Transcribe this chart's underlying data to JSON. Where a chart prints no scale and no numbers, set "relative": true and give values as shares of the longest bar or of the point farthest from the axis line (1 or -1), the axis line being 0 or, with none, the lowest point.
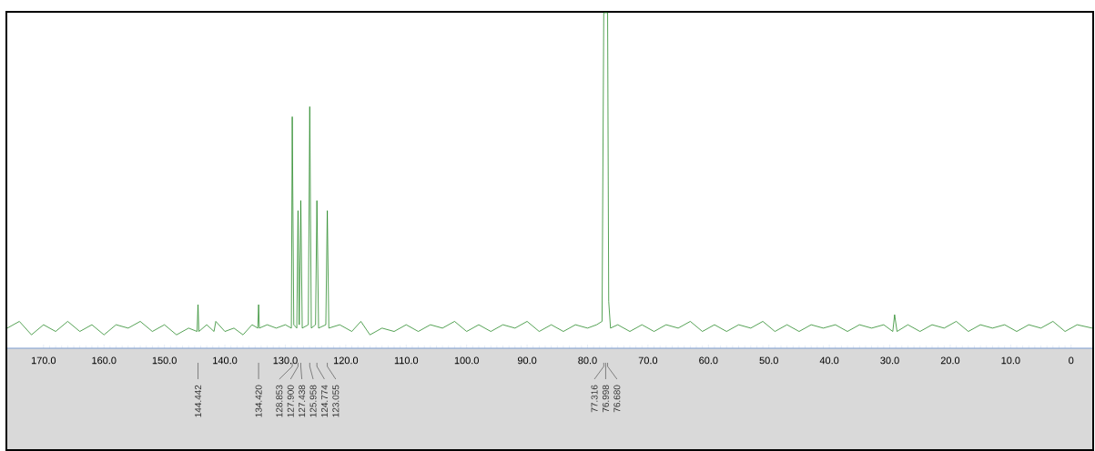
{
  "chart_data": {
    "type": "line",
    "relative": true,
    "xlim": [
      176,
      -3.5
    ],
    "xticks": [
      {
        "value": 170,
        "label": "170.0"
      },
      {
        "value": 160,
        "label": "160.0"
      },
      {
        "value": 150,
        "label": "150.0"
      },
      {
        "value": 140,
        "label": "140.0"
      },
      {
        "value": 130,
        "label": "130.0"
      },
      {
        "value": 120,
        "label": "120.0"
      },
      {
        "value": 110,
        "label": "110.0"
      },
      {
        "value": 100,
        "label": "100.0"
      },
      {
        "value": 90,
        "label": "90.0"
      },
      {
        "value": 80,
        "label": "80.0"
      },
      {
        "value": 70,
        "label": "70.0"
      },
      {
        "value": 60,
        "label": "60.0"
      },
      {
        "value": 50,
        "label": "50.0"
      },
      {
        "value": 40,
        "label": "40.0"
      },
      {
        "value": 30,
        "label": "30.0"
      },
      {
        "value": 20,
        "label": "20.0"
      },
      {
        "value": 10,
        "label": "10.0"
      },
      0
    ],
    "series": [
      {
        "color": "#2a8a2a",
        "x": [
          176,
          174,
          172,
          170,
          168,
          166,
          164,
          162,
          160,
          158,
          156,
          154,
          152,
          150,
          148,
          146,
          144.6,
          144.442,
          144.3,
          143,
          141.8,
          141.5,
          140,
          138.5,
          137,
          135.5,
          134.55,
          134.42,
          134.3,
          133,
          131.5,
          130,
          129,
          128.853,
          128.6,
          128.1,
          127.9,
          127.7,
          127.438,
          127.2,
          126.2,
          125.958,
          125.7,
          125.0,
          124.774,
          124.5,
          123.3,
          123.055,
          122.8,
          121,
          119,
          117.5,
          116,
          114,
          112,
          110,
          108,
          106,
          104,
          102,
          100,
          98,
          96,
          94,
          92,
          90,
          88,
          86,
          84,
          82,
          80,
          78.5,
          77.6,
          77.316,
          76.998,
          76.68,
          76.5,
          76.2,
          75,
          73,
          71,
          69,
          67,
          65,
          63,
          61,
          59,
          57,
          55,
          53,
          51,
          49,
          47,
          45,
          43,
          41,
          39,
          37,
          35,
          33,
          31,
          29.5,
          29.2,
          28.8,
          27,
          25,
          23,
          21,
          19,
          17,
          15,
          13,
          11,
          9,
          7,
          5,
          3,
          1,
          -1,
          -3.5
        ],
        "values": [
          0.06,
          0.08,
          0.04,
          0.07,
          0.05,
          0.08,
          0.05,
          0.07,
          0.04,
          0.07,
          0.06,
          0.08,
          0.05,
          0.07,
          0.04,
          0.06,
          0.05,
          0.13,
          0.05,
          0.07,
          0.05,
          0.08,
          0.05,
          0.06,
          0.04,
          0.07,
          0.06,
          0.13,
          0.06,
          0.07,
          0.06,
          0.07,
          0.06,
          0.69,
          0.07,
          0.06,
          0.41,
          0.07,
          0.44,
          0.06,
          0.07,
          0.72,
          0.06,
          0.07,
          0.44,
          0.06,
          0.07,
          0.41,
          0.06,
          0.07,
          0.05,
          0.08,
          0.04,
          0.06,
          0.05,
          0.07,
          0.05,
          0.07,
          0.06,
          0.08,
          0.05,
          0.07,
          0.05,
          0.07,
          0.06,
          0.08,
          0.05,
          0.07,
          0.05,
          0.07,
          0.06,
          0.07,
          0.08,
          1,
          1,
          1,
          0.14,
          0.06,
          0.07,
          0.05,
          0.07,
          0.05,
          0.07,
          0.06,
          0.08,
          0.05,
          0.07,
          0.05,
          0.07,
          0.06,
          0.08,
          0.05,
          0.07,
          0.05,
          0.07,
          0.06,
          0.07,
          0.05,
          0.07,
          0.06,
          0.07,
          0.05,
          0.1,
          0.05,
          0.07,
          0.05,
          0.07,
          0.06,
          0.08,
          0.05,
          0.07,
          0.06,
          0.07,
          0.05,
          0.07,
          0.06,
          0.08,
          0.05,
          0.07,
          0.06
        ]
      }
    ],
    "annotations": [
      {
        "text": "144.442",
        "x": 144.442
      },
      {
        "text": "134.420",
        "x": 134.42
      },
      {
        "text": "128.853",
        "x": 128.853
      },
      {
        "text": "127.900",
        "x": 127.9
      },
      {
        "text": "127.438",
        "x": 127.438
      },
      {
        "text": "125.958",
        "x": 125.958
      },
      {
        "text": "124.774",
        "x": 124.774
      },
      {
        "text": "123.055",
        "x": 123.055
      },
      {
        "text": "77.316",
        "x": 77.316
      },
      {
        "text": "76.998",
        "x": 76.998
      },
      {
        "text": "76.680",
        "x": 76.68
      }
    ]
  }
}
